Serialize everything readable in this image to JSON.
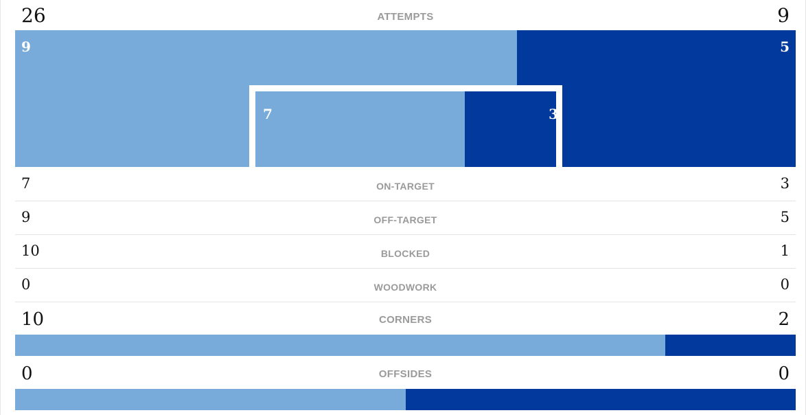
{
  "attempts": {
    "label": "ATTEMPTS",
    "home": "26",
    "away": "9"
  },
  "off_target_graphic": {
    "home": "9",
    "away": "5",
    "home_share": 0.643
  },
  "on_target_graphic": {
    "home": "7",
    "away": "3",
    "home_share": 0.7
  },
  "stats": [
    {
      "label": "ON-TARGET",
      "home": "7",
      "away": "3"
    },
    {
      "label": "OFF-TARGET",
      "home": "9",
      "away": "5"
    },
    {
      "label": "BLOCKED",
      "home": "10",
      "away": "1"
    },
    {
      "label": "WOODWORK",
      "home": "0",
      "away": "0"
    }
  ],
  "corners": {
    "label": "CORNERS",
    "home": "10",
    "away": "2",
    "home_share": 0.833
  },
  "offsides": {
    "label": "OFFSIDES",
    "home": "0",
    "away": "0",
    "home_share": 0.5
  },
  "colors": {
    "home": "#78aada",
    "away": "#013a9c",
    "label": "#9a9a9a"
  }
}
